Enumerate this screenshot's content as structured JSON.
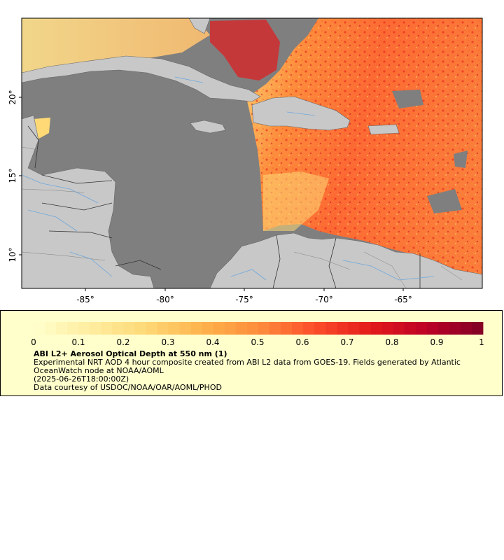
{
  "map": {
    "lon_ticks": [
      "-85°",
      "-80°",
      "-75°",
      "-70°",
      "-65°"
    ],
    "lat_ticks": [
      "20°",
      "15°",
      "10°"
    ],
    "extent": {
      "lon_min": -89,
      "lon_max": -60,
      "lat_min": 8.0,
      "lat_max": 24.3
    },
    "colors": {
      "ocean_nodata": "#7f7f7f",
      "land": "#c8c8c8",
      "coast": "#666666",
      "rivers": "#6fa8dc"
    }
  },
  "legend": {
    "colorbar_ticks": [
      "0",
      "0.1",
      "0.2",
      "0.3",
      "0.4",
      "0.5",
      "0.6",
      "0.7",
      "0.8",
      "0.9",
      "1"
    ],
    "colorbar_range": [
      0,
      1
    ],
    "colorbar_colors": [
      "#ffffcc",
      "#ffeda0",
      "#fed976",
      "#feb24c",
      "#fd8d3c",
      "#fc4e2a",
      "#e31a1c",
      "#bd0026",
      "#800026"
    ],
    "title": "ABI L2+ Aerosol Optical Depth at 550 nm (1)",
    "description": "Experimental NRT AOD 4 hour composite created from ABI L2 data from GOES-19. Fields generated by Atlantic OceanWatch node at NOAA/AOML",
    "timestamp": "(2025-06-26T18:00:00Z)",
    "credit": "Data courtesy of USDOC/NOAA/OAR/AOML/PHOD"
  }
}
